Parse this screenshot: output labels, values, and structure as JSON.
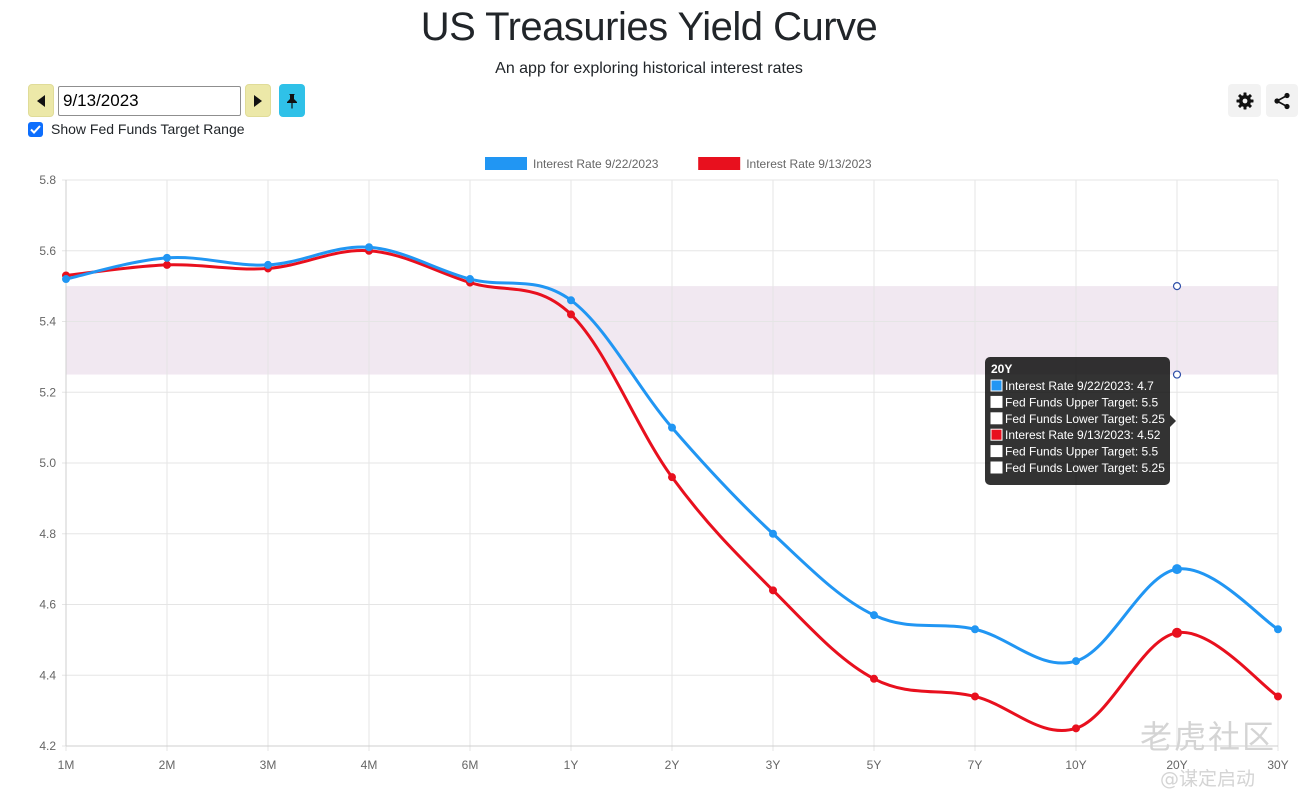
{
  "header": {
    "title": "US Treasuries Yield Curve",
    "subtitle": "An app for exploring historical interest rates"
  },
  "controls": {
    "date_value": "9/13/2023",
    "show_fed_funds_label": "Show Fed Funds Target Range",
    "show_fed_funds_checked": true
  },
  "watermark": {
    "main": "老虎社区",
    "sub": "@谋定启动"
  },
  "chart_data": {
    "type": "line",
    "categories": [
      "1M",
      "2M",
      "3M",
      "4M",
      "6M",
      "1Y",
      "2Y",
      "3Y",
      "5Y",
      "7Y",
      "10Y",
      "20Y",
      "30Y"
    ],
    "ylim": [
      4.2,
      5.8
    ],
    "yticks": [
      "4.2",
      "4.4",
      "4.6",
      "4.8",
      "5.0",
      "5.2",
      "5.4",
      "5.6",
      "5.8"
    ],
    "grid": true,
    "legend_position": "top",
    "series": [
      {
        "name": "Interest Rate 9/22/2023",
        "color": "#2196f3",
        "values": [
          5.52,
          5.58,
          5.56,
          5.61,
          5.52,
          5.46,
          5.1,
          4.8,
          4.57,
          4.53,
          4.44,
          4.7,
          4.53
        ]
      },
      {
        "name": "Interest Rate 9/13/2023",
        "color": "#e8101e",
        "values": [
          5.53,
          5.56,
          5.55,
          5.6,
          5.51,
          5.42,
          4.96,
          4.64,
          4.39,
          4.34,
          4.25,
          4.52,
          4.34
        ]
      }
    ],
    "fed_funds_band": {
      "upper": 5.5,
      "lower": 5.25,
      "color": "#f1e8f1"
    },
    "tooltip": {
      "category": "20Y",
      "category_index": 11,
      "lines": [
        {
          "text": "Interest Rate 9/22/2023: 4.7",
          "color": "#2196f3"
        },
        {
          "text": "Fed Funds Upper Target: 5.5",
          "color": "#ffffff"
        },
        {
          "text": "Fed Funds Lower Target: 5.25",
          "color": "#ffffff"
        },
        {
          "text": "Interest Rate 9/13/2023: 4.52",
          "color": "#e8101e"
        },
        {
          "text": "Fed Funds Upper Target: 5.5",
          "color": "#ffffff"
        },
        {
          "text": "Fed Funds Lower Target: 5.25",
          "color": "#ffffff"
        }
      ]
    }
  }
}
